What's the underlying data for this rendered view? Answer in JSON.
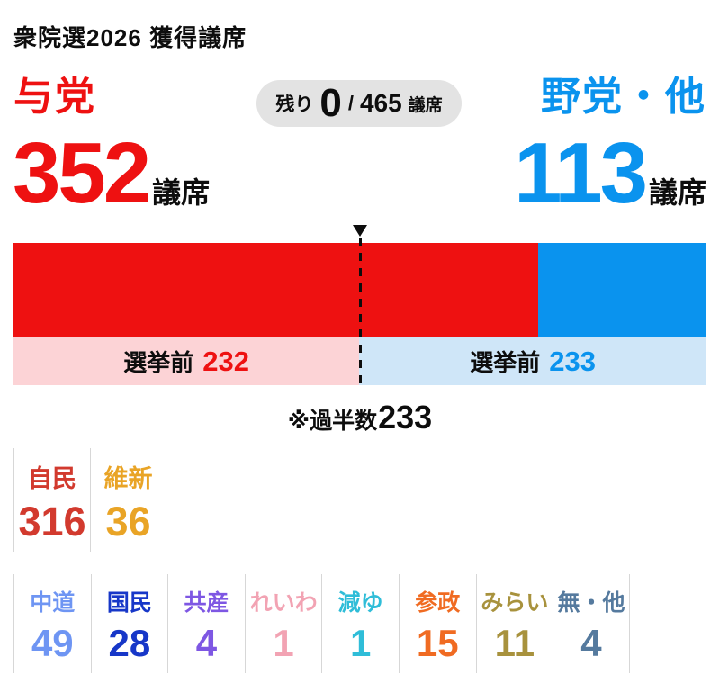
{
  "page": {
    "title": "衆院選2026 獲得議席"
  },
  "header": {
    "ruling_label": "与党",
    "opposition_label": "野党・他",
    "remaining_badge": {
      "prefix": "残り",
      "remaining": "0",
      "separator": "/",
      "total": "465",
      "unit": "議席"
    }
  },
  "totals": {
    "ruling_seats": "352",
    "ruling_unit": "議席",
    "opposition_seats": "113",
    "opposition_unit": "議席"
  },
  "chart_data": {
    "type": "bar",
    "title": "衆院選2026 獲得議席",
    "total_seats": 465,
    "majority_seats": 233,
    "categories": [
      "与党",
      "野党・他"
    ],
    "series": [
      {
        "name": "与党",
        "seats": 352,
        "pre_election_seats": 232,
        "bar_color": "#ee1111",
        "pre_band_color": "#fcd3d6",
        "value_color": "#ee1111"
      },
      {
        "name": "野党・他",
        "seats": 113,
        "pre_election_seats": 233,
        "bar_color": "#0a93ee",
        "pre_band_color": "#cfe6f8",
        "value_color": "#0a93ee"
      }
    ],
    "pre_election_label": "選挙前",
    "majority_note_prefix": "※過半数",
    "majority_note_value": "233",
    "legend_position": "none",
    "grid": false,
    "parties": [
      {
        "name": "自民",
        "seats": 316
      },
      {
        "name": "維新",
        "seats": 36
      },
      {
        "name": "中道",
        "seats": 49
      },
      {
        "name": "国民",
        "seats": 28
      },
      {
        "name": "共産",
        "seats": 4
      },
      {
        "name": "れいわ",
        "seats": 1
      },
      {
        "name": "減ゆ",
        "seats": 1
      },
      {
        "name": "参政",
        "seats": 15
      },
      {
        "name": "みらい",
        "seats": 11
      },
      {
        "name": "無・他",
        "seats": 4
      }
    ]
  },
  "parties_row1": [
    {
      "name": "自民",
      "seats": "316",
      "color": "#d23a2e"
    },
    {
      "name": "維新",
      "seats": "36",
      "color": "#e9a426"
    }
  ],
  "parties_row2": [
    {
      "name": "中道",
      "seats": "49",
      "color": "#6e95f3"
    },
    {
      "name": "国民",
      "seats": "28",
      "color": "#1737c8"
    },
    {
      "name": "共産",
      "seats": "4",
      "color": "#7e57e3"
    },
    {
      "name": "れいわ",
      "seats": "1",
      "color": "#f2a3b3"
    },
    {
      "name": "減ゆ",
      "seats": "1",
      "color": "#2fbdd8"
    },
    {
      "name": "参政",
      "seats": "15",
      "color": "#f06b22"
    },
    {
      "name": "みらい",
      "seats": "11",
      "color": "#a8923d"
    },
    {
      "name": "無・他",
      "seats": "4",
      "color": "#557a9e"
    }
  ],
  "colors": {
    "ruling_red": "#ee1111",
    "opposition_blue": "#0a93ee",
    "pre_ruling_pink": "#fcd3d6",
    "pre_opposition_blue": "#cfe6f8",
    "badge_gray": "#e3e3e3",
    "divider_gray": "#d7d7d7",
    "text_black": "#0d0d0d"
  }
}
